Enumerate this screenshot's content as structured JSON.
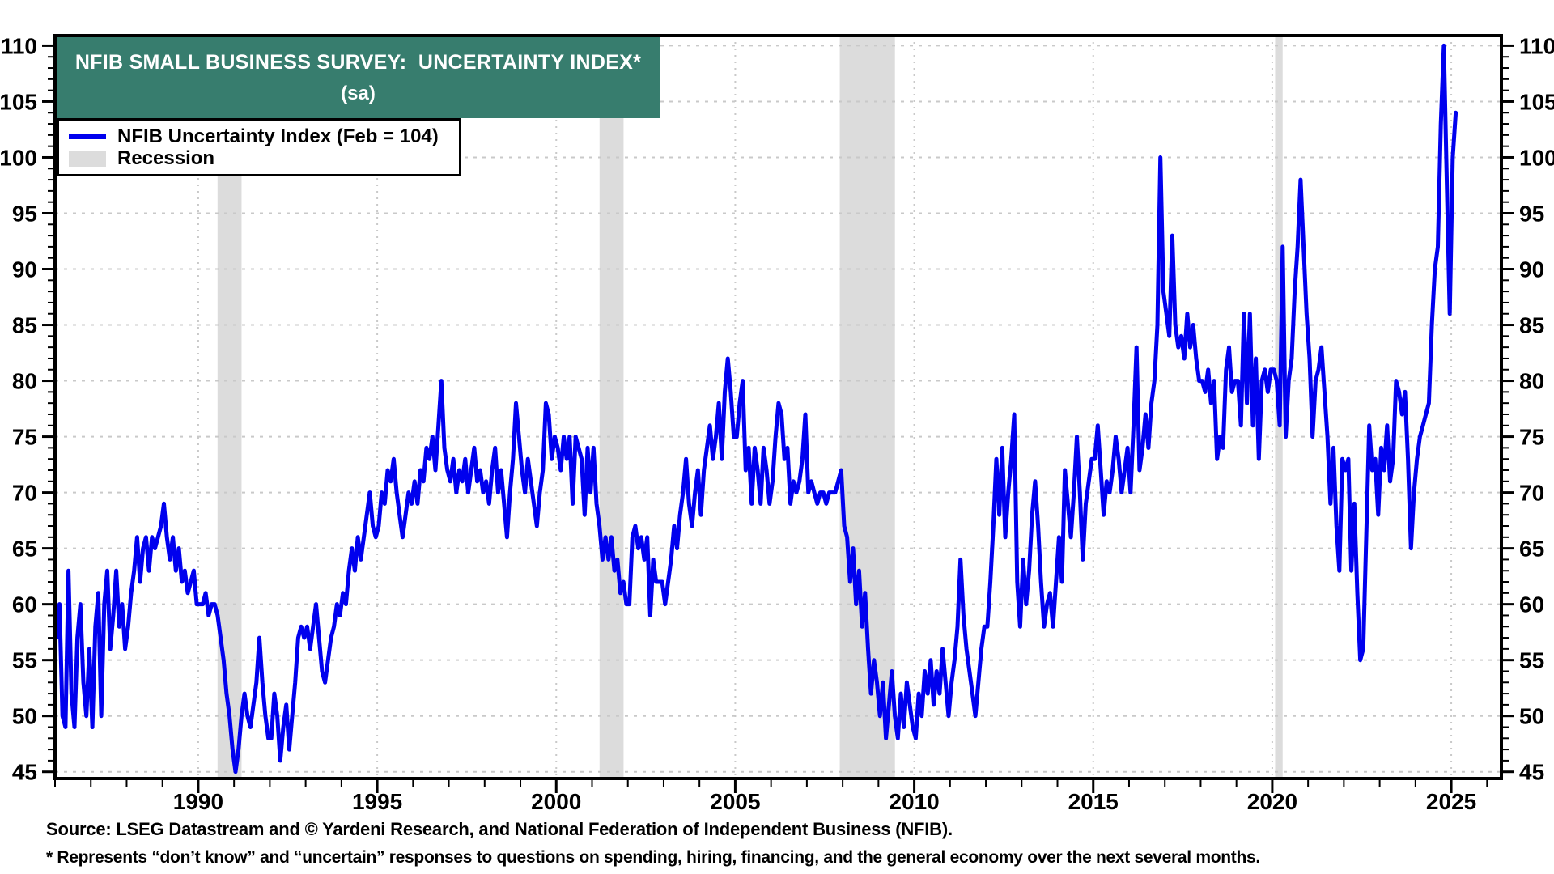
{
  "banner": {
    "title": "NFIB SMALL BUSINESS SURVEY:  UNCERTAINTY INDEX*",
    "subtitle": "(sa)",
    "bg_color": "#377D6E",
    "text_color": "#FFFFFF"
  },
  "legend": {
    "items": [
      {
        "label": "NFIB Uncertainty Index (Feb = 104)",
        "swatch": "line",
        "color": "#0000EE"
      },
      {
        "label": "Recession",
        "swatch": "box",
        "color": "#DCDCDC"
      }
    ]
  },
  "footer": {
    "line1": "Source: LSEG Datastream and © Yardeni Research, and National Federation of Independent Business (NFIB).",
    "line2": "* Represents “don’t know” and “uncertain” responses to questions on spending, hiring, financing, and the general economy over the next several months."
  },
  "chart_data": {
    "type": "line",
    "title": "NFIB SMALL BUSINESS SURVEY: UNCERTAINTY INDEX* (sa)",
    "legend_position": "top-left",
    "grid": true,
    "line_color": "#0000EE",
    "recession_color": "#DCDCDC",
    "gridline_color": "#C9C9C9",
    "x_axis": {
      "min": 1986.0,
      "max": 2026.4,
      "tick_label_years": [
        1990,
        1995,
        2000,
        2005,
        2010,
        2015,
        2020,
        2025
      ],
      "minor_tick_start": 1986,
      "minor_tick_end": 2026,
      "minor_tick_every": 1
    },
    "y_axis": {
      "min": 44.4,
      "max": 110.9,
      "tick_labels": [
        45,
        50,
        55,
        60,
        65,
        70,
        75,
        80,
        85,
        90,
        95,
        100,
        105,
        110
      ],
      "minor_tick_every": 1,
      "label_both_sides": true
    },
    "recessions": [
      {
        "name": "1990-91 recession",
        "start": 1990.54,
        "end": 1991.21
      },
      {
        "name": "2001 recession",
        "start": 2001.21,
        "end": 2001.88
      },
      {
        "name": "2008-09 recession",
        "start": 2007.92,
        "end": 2009.46
      },
      {
        "name": "2020 recession",
        "start": 2020.08,
        "end": 2020.29
      }
    ],
    "series": [
      {
        "name": "NFIB Uncertainty Index",
        "frequency": "monthly",
        "start_year": 1986,
        "start_month": 1,
        "last_point_label": "Feb = 104",
        "values": [
          57,
          60,
          50,
          49,
          63,
          52,
          49,
          57,
          60,
          53,
          50,
          56,
          49,
          58,
          61,
          50,
          60,
          63,
          56,
          59,
          63,
          58,
          60,
          56,
          58,
          61,
          63,
          66,
          62,
          65,
          66,
          63,
          66,
          65,
          66,
          67,
          69,
          66,
          64,
          66,
          63,
          65,
          62,
          63,
          61,
          62,
          63,
          60,
          60,
          60,
          61,
          59,
          60,
          60,
          59,
          57,
          55,
          52,
          50,
          47,
          45,
          47,
          50,
          52,
          50,
          49,
          51,
          53,
          57,
          53,
          50,
          48,
          48,
          52,
          50,
          46,
          49,
          51,
          47,
          50,
          53,
          57,
          58,
          57,
          58,
          56,
          58,
          60,
          57,
          54,
          53,
          55,
          57,
          58,
          60,
          59,
          61,
          60,
          63,
          65,
          63,
          66,
          64,
          66,
          68,
          70,
          67,
          66,
          67,
          70,
          69,
          72,
          71,
          73,
          70,
          68,
          66,
          68,
          70,
          69,
          71,
          69,
          72,
          71,
          74,
          73,
          75,
          72,
          76,
          80,
          74,
          72,
          71,
          73,
          70,
          72,
          71,
          73,
          70,
          72,
          74,
          71,
          72,
          70,
          71,
          69,
          72,
          74,
          70,
          72,
          69,
          66,
          70,
          73,
          78,
          75,
          72,
          70,
          73,
          71,
          69,
          67,
          70,
          72,
          78,
          77,
          73,
          75,
          74,
          72,
          75,
          73,
          75,
          69,
          75,
          74,
          73,
          68,
          74,
          70,
          74,
          69,
          67,
          64,
          66,
          64,
          66,
          63,
          64,
          61,
          62,
          60,
          60,
          66,
          67,
          65,
          66,
          64,
          66,
          59,
          64,
          62,
          62,
          62,
          60,
          62,
          64,
          67,
          65,
          68,
          70,
          73,
          69,
          67,
          70,
          72,
          68,
          72,
          74,
          76,
          73,
          75,
          78,
          73,
          79,
          82,
          79,
          75,
          75,
          78,
          80,
          72,
          74,
          69,
          74,
          72,
          69,
          74,
          72,
          69,
          71,
          75,
          78,
          77,
          73,
          74,
          69,
          71,
          70,
          71,
          73,
          77,
          70,
          71,
          70,
          69,
          70,
          70,
          69,
          70,
          70,
          70,
          71,
          72,
          67,
          66,
          62,
          65,
          60,
          63,
          58,
          61,
          56,
          52,
          55,
          53,
          50,
          53,
          48,
          51,
          54,
          50,
          48,
          52,
          49,
          53,
          51,
          49,
          48,
          52,
          50,
          54,
          52,
          55,
          51,
          54,
          52,
          56,
          53,
          50,
          53,
          55,
          58,
          64,
          59,
          56,
          54,
          52,
          50,
          53,
          56,
          58,
          58,
          62,
          67,
          73,
          68,
          74,
          66,
          70,
          73,
          77,
          62,
          58,
          64,
          60,
          63,
          68,
          71,
          67,
          62,
          58,
          60,
          61,
          58,
          62,
          66,
          62,
          72,
          69,
          66,
          70,
          75,
          70,
          64,
          69,
          71,
          73,
          73,
          76,
          72,
          68,
          71,
          70,
          72,
          75,
          73,
          70,
          72,
          74,
          70,
          76,
          83,
          72,
          74,
          77,
          74,
          78,
          80,
          85,
          100,
          88,
          86,
          84,
          93,
          85,
          83,
          84,
          82,
          86,
          83,
          85,
          82,
          80,
          80,
          79,
          81,
          78,
          80,
          73,
          75,
          74,
          81,
          83,
          79,
          80,
          80,
          76,
          86,
          78,
          86,
          76,
          82,
          73,
          80,
          81,
          79,
          81,
          81,
          80,
          76,
          92,
          75,
          80,
          82,
          88,
          92,
          98,
          92,
          86,
          82,
          75,
          80,
          81,
          83,
          79,
          75,
          69,
          74,
          67,
          63,
          73,
          72,
          73,
          63,
          69,
          61,
          55,
          56,
          66,
          76,
          72,
          73,
          68,
          74,
          72,
          76,
          71,
          73,
          80,
          79,
          77,
          79,
          73,
          65,
          70,
          73,
          75,
          76,
          77,
          78,
          85,
          90,
          92,
          103,
          110,
          98,
          86,
          100,
          104
        ]
      }
    ]
  }
}
